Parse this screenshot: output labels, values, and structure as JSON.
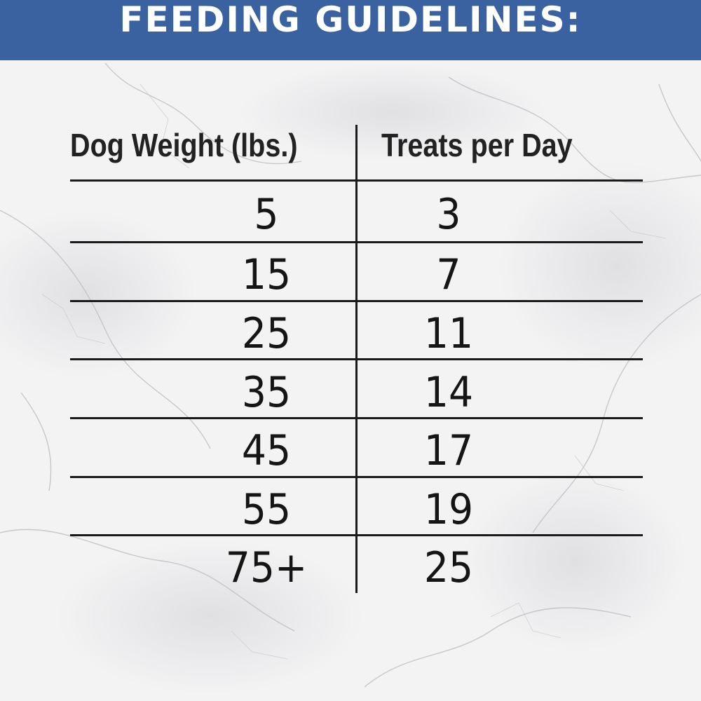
{
  "banner": {
    "title": "FEEDING GUIDELINES:",
    "color": "#3a62a0"
  },
  "table": {
    "columns": [
      "Dog Weight (lbs.)",
      "Treats per Day"
    ],
    "rows": [
      {
        "weight": "5",
        "treats": "3"
      },
      {
        "weight": "15",
        "treats": "7"
      },
      {
        "weight": "25",
        "treats": "11"
      },
      {
        "weight": "35",
        "treats": "14"
      },
      {
        "weight": "45",
        "treats": "17"
      },
      {
        "weight": "55",
        "treats": "19"
      },
      {
        "weight": "75+",
        "treats": "25"
      }
    ]
  },
  "background": {
    "style": "white marble texture"
  }
}
